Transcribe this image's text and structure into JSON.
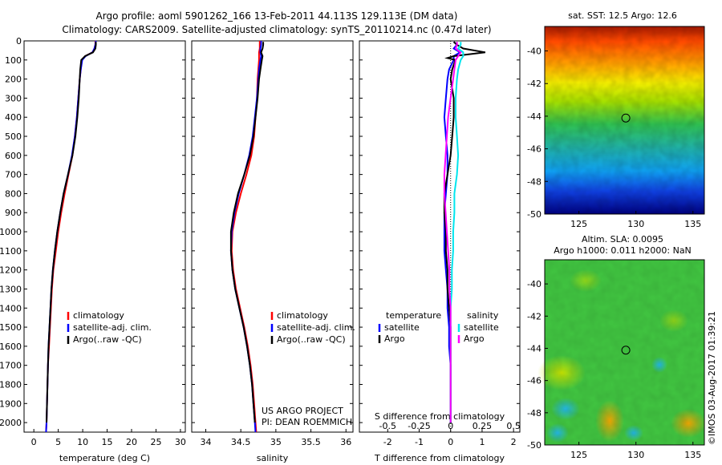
{
  "header": {
    "title_line1": "Argo profile: aoml 5901262_166 13-Feb-2011 44.113S 129.113E (DM data)",
    "title_line2": "Climatology: CARS2009. Satellite-adjusted climatology: synTS_20110214.nc (0.47d later)"
  },
  "project_text": {
    "line1": "US ARGO PROJECT",
    "line2": "PI: DEAN ROEMMICH"
  },
  "footer": {
    "stamp": "©IMOS 03-Aug-2017 01:39:21"
  },
  "colors": {
    "climatology": "#ff0000",
    "satellite": "#0000ff",
    "argo": "#000000",
    "salinity_satellite": "#00e5ee",
    "salinity_argo": "#ff00ff"
  },
  "chart_data": [
    {
      "id": "temperature",
      "type": "line",
      "xlabel": "temperature (deg C)",
      "ylabel": "",
      "xlim": [
        -2,
        31
      ],
      "ylim": [
        2050,
        0
      ],
      "xticks": [
        0,
        5,
        10,
        15,
        20,
        25,
        30
      ],
      "yticks": [
        0,
        100,
        200,
        300,
        400,
        500,
        600,
        700,
        800,
        900,
        1000,
        1100,
        1200,
        1300,
        1400,
        1500,
        1600,
        1700,
        1800,
        1900,
        2000
      ],
      "legend": [
        "climatology",
        "satellite-adj. clim.",
        "Argo(..raw -QC)"
      ],
      "series": [
        {
          "name": "climatology",
          "color": "#ff0000",
          "depth": [
            0,
            20,
            40,
            60,
            80,
            100,
            150,
            200,
            300,
            400,
            500,
            600,
            700,
            800,
            900,
            1000,
            1100,
            1200,
            1300,
            1400,
            1500,
            1600,
            1700,
            1800,
            1900,
            2000,
            2050
          ],
          "values": [
            12.6,
            12.6,
            12.4,
            12.0,
            10.5,
            9.8,
            9.6,
            9.4,
            9.1,
            8.8,
            8.4,
            7.9,
            7.1,
            6.3,
            5.6,
            5.0,
            4.5,
            4.0,
            3.7,
            3.5,
            3.3,
            3.1,
            2.9,
            2.8,
            2.7,
            2.6,
            2.5
          ]
        },
        {
          "name": "satellite-adj. clim.",
          "color": "#0000ff",
          "depth": [
            0,
            20,
            40,
            60,
            80,
            100,
            150,
            200,
            300,
            400,
            500,
            600,
            700,
            800,
            900,
            1000,
            1100,
            1200,
            1300,
            1400,
            1500,
            1600,
            1700,
            1800,
            1900,
            2000,
            2050
          ],
          "values": [
            12.7,
            12.6,
            12.4,
            12.0,
            10.6,
            9.9,
            9.6,
            9.4,
            9.1,
            8.8,
            8.4,
            7.8,
            7.0,
            6.1,
            5.4,
            4.8,
            4.3,
            3.9,
            3.6,
            3.4,
            3.2,
            3.0,
            2.9,
            2.8,
            2.7,
            2.6,
            2.5
          ]
        },
        {
          "name": "Argo(..raw -QC)",
          "color": "#000000",
          "depth": [
            5,
            20,
            40,
            60,
            80,
            100,
            150,
            200,
            300,
            400,
            500,
            600,
            700,
            800,
            900,
            1000,
            1100,
            1200,
            1300,
            1400,
            1500,
            1600,
            1700,
            1800,
            1900,
            2000
          ],
          "values": [
            12.7,
            12.7,
            12.6,
            12.1,
            10.5,
            9.7,
            9.5,
            9.4,
            9.2,
            8.9,
            8.5,
            7.9,
            7.0,
            6.1,
            5.4,
            4.8,
            4.3,
            3.9,
            3.6,
            3.4,
            3.2,
            3.0,
            2.9,
            2.8,
            2.7,
            2.6
          ]
        }
      ]
    },
    {
      "id": "salinity",
      "type": "line",
      "xlabel": "salinity",
      "xlim": [
        33.8,
        36.1
      ],
      "ylim": [
        2050,
        0
      ],
      "xticks": [
        34,
        34.5,
        35,
        35.5,
        36
      ],
      "legend": [
        "climatology",
        "satellite-adj. clim.",
        "Argo(..raw -QC)"
      ],
      "series": [
        {
          "name": "climatology",
          "color": "#ff0000",
          "depth": [
            0,
            20,
            40,
            60,
            80,
            100,
            150,
            200,
            300,
            400,
            500,
            600,
            700,
            800,
            900,
            1000,
            1100,
            1200,
            1300,
            1400,
            1500,
            1600,
            1700,
            1800,
            1900,
            2000,
            2050
          ],
          "values": [
            34.77,
            34.77,
            34.77,
            34.76,
            34.76,
            34.76,
            34.75,
            34.74,
            34.73,
            34.71,
            34.69,
            34.65,
            34.58,
            34.5,
            34.43,
            34.38,
            34.37,
            34.39,
            34.43,
            34.49,
            34.55,
            34.6,
            34.64,
            34.67,
            34.69,
            34.71,
            34.72
          ]
        },
        {
          "name": "satellite-adj. clim.",
          "color": "#0000ff",
          "depth": [
            0,
            20,
            40,
            60,
            80,
            100,
            150,
            200,
            300,
            400,
            500,
            600,
            700,
            800,
            900,
            1000,
            1100,
            1200,
            1300,
            1400,
            1500,
            1600,
            1700,
            1800,
            1900,
            2000,
            2050
          ],
          "values": [
            34.79,
            34.79,
            34.78,
            34.78,
            34.79,
            34.78,
            34.76,
            34.75,
            34.73,
            34.7,
            34.67,
            34.62,
            34.55,
            34.47,
            34.41,
            34.37,
            34.36,
            34.38,
            34.42,
            34.48,
            34.54,
            34.59,
            34.63,
            34.66,
            34.68,
            34.7,
            34.71
          ]
        },
        {
          "name": "Argo(..raw -QC)",
          "color": "#000000",
          "depth": [
            5,
            20,
            40,
            60,
            80,
            100,
            150,
            200,
            300,
            400,
            500,
            600,
            700,
            800,
            900,
            1000,
            1100,
            1200,
            1300,
            1400,
            1500,
            1600,
            1700,
            1800,
            1900,
            2000
          ],
          "values": [
            34.82,
            34.82,
            34.81,
            34.79,
            34.81,
            34.8,
            34.78,
            34.76,
            34.74,
            34.71,
            34.68,
            34.63,
            34.55,
            34.46,
            34.4,
            34.36,
            34.36,
            34.38,
            34.42,
            34.48,
            34.54,
            34.59,
            34.63,
            34.66,
            34.68,
            34.7
          ]
        }
      ]
    },
    {
      "id": "difference",
      "type": "line",
      "xlabel": "T difference from climatology",
      "xlabel_top": "S difference from climatology",
      "xlim": [
        -2.9,
        2.2
      ],
      "ylim": [
        2050,
        0
      ],
      "xticks": [
        -2,
        -1,
        0,
        1,
        2
      ],
      "xticklabels": [
        "-2",
        "-1",
        "0",
        "1",
        "2"
      ],
      "sticks": [
        -0.5,
        -0.25,
        0,
        0.25,
        0.5
      ],
      "legend_headers": [
        "temperature",
        "salinity"
      ],
      "legend": [
        "satellite",
        "Argo",
        "satellite",
        "Argo"
      ],
      "series": [
        {
          "name": "satellite",
          "variable": "temperature",
          "color": "#0000ff",
          "depth": [
            5,
            20,
            40,
            60,
            80,
            100,
            150,
            200,
            300,
            400,
            500,
            600,
            700,
            800,
            900,
            1000,
            1100,
            1200,
            1300,
            1400,
            1500,
            1600,
            1700,
            1800,
            1900,
            2000
          ],
          "values": [
            0.1,
            0.2,
            0.1,
            0.3,
            0.1,
            0.1,
            -0.05,
            -0.1,
            -0.15,
            -0.2,
            -0.15,
            -0.1,
            -0.1,
            -0.15,
            -0.2,
            -0.2,
            -0.2,
            -0.15,
            -0.1,
            -0.1,
            -0.05,
            -0.05,
            0,
            0,
            0,
            0
          ]
        },
        {
          "name": "Argo",
          "variable": "temperature",
          "color": "#000000",
          "depth": [
            5,
            20,
            40,
            60,
            80,
            90,
            100,
            150,
            200,
            300,
            400,
            500,
            600,
            700,
            800,
            900,
            1000,
            1100,
            1200,
            1300,
            1400,
            1500,
            1600,
            1700,
            1800,
            1900,
            2000
          ],
          "values": [
            0.1,
            0.2,
            0.4,
            1.1,
            0.1,
            -0.1,
            0.15,
            0.05,
            0.0,
            0.1,
            0.1,
            0.05,
            0.0,
            -0.1,
            -0.2,
            -0.2,
            -0.15,
            -0.15,
            -0.1,
            -0.1,
            -0.05,
            0,
            0,
            0,
            0,
            0,
            0
          ]
        },
        {
          "name": "satellite",
          "variable": "salinity",
          "color": "#00e5ee",
          "depth": [
            5,
            20,
            40,
            60,
            80,
            100,
            150,
            200,
            300,
            400,
            500,
            600,
            700,
            800,
            900,
            1000,
            1100,
            1200,
            1300,
            1400,
            1500,
            1600,
            1700,
            1800,
            1900,
            2000
          ],
          "values": [
            0.08,
            0.08,
            0.06,
            0.1,
            0.1,
            0.08,
            0.06,
            0.05,
            0.04,
            0.04,
            0.05,
            0.06,
            0.05,
            0.03,
            0.03,
            0.02,
            0.02,
            0.01,
            0.01,
            0.0,
            0.0,
            0.0,
            0.0,
            0.0,
            0.0,
            0.0
          ]
        },
        {
          "name": "Argo",
          "variable": "salinity",
          "color": "#ff00ff",
          "depth": [
            5,
            20,
            40,
            60,
            80,
            100,
            150,
            200,
            300,
            400,
            500,
            600,
            700,
            800,
            900,
            1000,
            1100,
            1200,
            1300,
            1400,
            1500,
            1600,
            1700,
            1800,
            1900,
            2000
          ],
          "values": [
            0.05,
            0.05,
            0.04,
            0.08,
            0.06,
            0.04,
            0.03,
            0.02,
            0.0,
            -0.02,
            -0.03,
            -0.04,
            -0.05,
            -0.05,
            -0.04,
            -0.03,
            -0.02,
            -0.01,
            -0.01,
            0.0,
            0.0,
            0.0,
            0.0,
            0.0,
            0.0,
            0.0
          ]
        }
      ]
    },
    {
      "id": "sst_map",
      "type": "heatmap",
      "title": "sat. SST: 12.5 Argo: 12.6",
      "xlim": [
        122,
        136
      ],
      "ylim": [
        -50,
        -38.5
      ],
      "xticks": [
        125,
        130,
        135
      ],
      "yticks": [
        -50,
        -48,
        -46,
        -44,
        -42,
        -40
      ],
      "marker": {
        "lon": 129.113,
        "lat": -44.113
      }
    },
    {
      "id": "sla_map",
      "type": "heatmap",
      "title_line1": "Altim. SLA: 0.0095",
      "title_line2": "Argo h1000: 0.011 h2000: NaN",
      "xlim": [
        122,
        136
      ],
      "ylim": [
        -50,
        -38.5
      ],
      "xticks": [
        125,
        130,
        135
      ],
      "yticks": [
        -50,
        -48,
        -46,
        -44,
        -42,
        -40
      ],
      "marker": {
        "lon": 129.113,
        "lat": -44.113
      }
    }
  ]
}
